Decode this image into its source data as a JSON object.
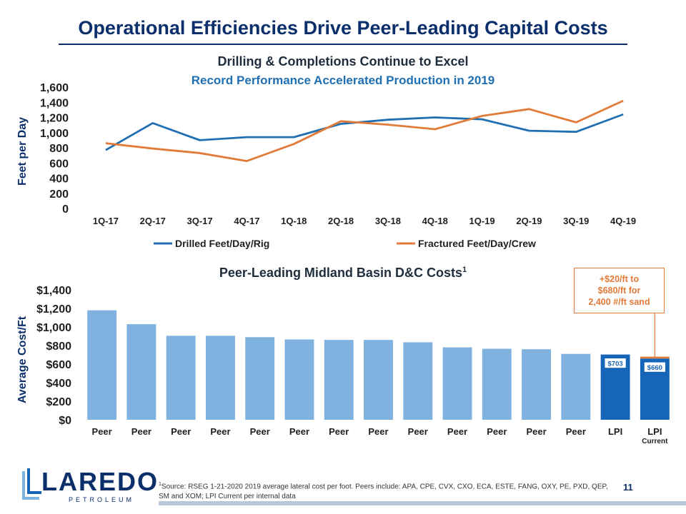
{
  "page": {
    "title": "Operational Efficiencies Drive Peer-Leading Capital Costs",
    "page_number": "11"
  },
  "section1": {
    "title": "Drilling  & Completions Continue to Excel",
    "subtitle": "Record Performance Accelerated Production in 2019"
  },
  "section2": {
    "title": "Peer-Leading Midland Basin D&C Costs",
    "title_sup": "1"
  },
  "callout": {
    "lines": [
      "+$20/ft to",
      "$680/ft for",
      "2,400 #/ft sand"
    ]
  },
  "logo": {
    "word": "LAREDO",
    "sub": "PETROLEUM"
  },
  "footnote": {
    "sup": "1",
    "text": "Source: RSEG 1-21-2020 2019 average lateral cost per foot. Peers include: APA, CPE,  CVX, CXO, ECA,  ESTE,  FANG, OXY, PE, PXD,  QEP,  SM and XOM; LPI Current per internal data"
  },
  "colors": {
    "drilled": "#1f6fb2",
    "fractured": "#e07b39",
    "peer": "#7fb2df",
    "lpi": "#1565b8"
  },
  "chart_data": [
    {
      "type": "line",
      "title": "Drilling & Completions Continue to Excel",
      "categories": [
        "1Q-17",
        "2Q-17",
        "3Q-17",
        "4Q-17",
        "1Q-18",
        "2Q-18",
        "3Q-18",
        "4Q-18",
        "1Q-19",
        "2Q-19",
        "3Q-19",
        "4Q-19"
      ],
      "series": [
        {
          "name": "Drilled Feet/Day/Rig",
          "values": [
            770,
            1125,
            900,
            940,
            940,
            1115,
            1170,
            1200,
            1175,
            1025,
            1010,
            1240
          ]
        },
        {
          "name": "Fractured Feet/Day/Crew",
          "values": [
            860,
            790,
            730,
            625,
            850,
            1150,
            1105,
            1045,
            1220,
            1310,
            1135,
            1420
          ]
        }
      ],
      "ylabel": "Feet per Day",
      "xlabel": "",
      "ylim": [
        0,
        1600
      ],
      "yticks": [
        0,
        200,
        400,
        600,
        800,
        1000,
        1200,
        1400,
        1600
      ],
      "ytick_labels": [
        "0",
        "200",
        "400",
        "600",
        "800",
        "1,000",
        "1,200",
        "1,400",
        "1,600"
      ],
      "legend": "bottom"
    },
    {
      "type": "bar",
      "title": "Peer-Leading Midland Basin D&C Costs",
      "categories": [
        "Peer",
        "Peer",
        "Peer",
        "Peer",
        "Peer",
        "Peer",
        "Peer",
        "Peer",
        "Peer",
        "Peer",
        "Peer",
        "Peer",
        "Peer",
        "LPI",
        "LPI"
      ],
      "category_sublabels": [
        "",
        "",
        "",
        "",
        "",
        "",
        "",
        "",
        "",
        "",
        "",
        "",
        "",
        "",
        "Current"
      ],
      "values": [
        1180,
        1030,
        905,
        905,
        890,
        865,
        860,
        860,
        835,
        780,
        765,
        760,
        710,
        703,
        660
      ],
      "data_labels": [
        "",
        "",
        "",
        "",
        "",
        "",
        "",
        "",
        "",
        "",
        "",
        "",
        "",
        "$703",
        "$660"
      ],
      "increment": {
        "index": 14,
        "value": 20
      },
      "ylabel": "Average Cost/Ft",
      "ylim": [
        0,
        1400
      ],
      "yticks": [
        0,
        200,
        400,
        600,
        800,
        1000,
        1200,
        1400
      ],
      "ytick_labels": [
        "$0",
        "$200",
        "$400",
        "$600",
        "$800",
        "$1,000",
        "$1,200",
        "$1,400"
      ]
    }
  ]
}
